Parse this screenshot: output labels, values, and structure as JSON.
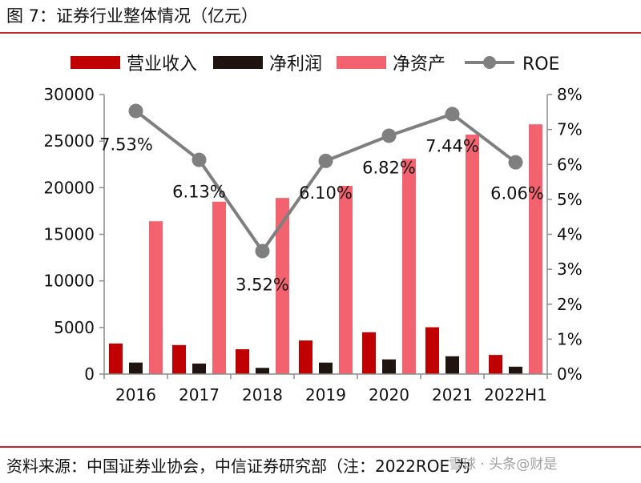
{
  "title": "图 7：证券行业整体情况（亿元）",
  "source": "资料来源：中国证券业协会，中信证券研究部（注：2022ROE 为",
  "watermark": "雪球 · 头条@财是",
  "chart_data": {
    "type": "bar",
    "categories": [
      "2016",
      "2017",
      "2018",
      "2019",
      "2020",
      "2021",
      "2022H1"
    ],
    "series": [
      {
        "name": "营业收入",
        "type": "bar",
        "axis": "left",
        "color": "#c00000",
        "values": [
          3280,
          3113,
          2663,
          3605,
          4485,
          5024,
          2051
        ]
      },
      {
        "name": "净利润",
        "type": "bar",
        "axis": "left",
        "color": "#1f1410",
        "values": [
          1234,
          1130,
          666,
          1231,
          1575,
          1911,
          791
        ]
      },
      {
        "name": "净资产",
        "type": "bar",
        "axis": "left",
        "color": "#f2636f",
        "values": [
          16400,
          18500,
          18900,
          20200,
          23100,
          25700,
          26800
        ]
      },
      {
        "name": "ROE",
        "type": "line",
        "axis": "right",
        "color": "#7f7f7f",
        "values": [
          7.53,
          6.13,
          3.52,
          6.1,
          6.82,
          7.44,
          6.06
        ],
        "labels": [
          "7.53%",
          "6.13%",
          "3.52%",
          "6.10%",
          "6.82%",
          "7.44%",
          "6.06%"
        ]
      }
    ],
    "y_left": {
      "min": 0,
      "max": 30000,
      "ticks": [
        "0",
        "5000",
        "10000",
        "15000",
        "20000",
        "25000",
        "30000"
      ]
    },
    "y_right": {
      "min": 0,
      "max": 8,
      "ticks": [
        "0%",
        "1%",
        "2%",
        "3%",
        "4%",
        "5%",
        "6%",
        "7%",
        "8%"
      ]
    },
    "legend": [
      {
        "label": "营业收入",
        "color": "#c00000",
        "kind": "box"
      },
      {
        "label": "净利润",
        "color": "#1f1410",
        "kind": "box"
      },
      {
        "label": "净资产",
        "color": "#f2636f",
        "kind": "box"
      },
      {
        "label": "ROE",
        "color": "#7f7f7f",
        "kind": "line"
      }
    ],
    "legend_position": "top",
    "grid": false
  }
}
